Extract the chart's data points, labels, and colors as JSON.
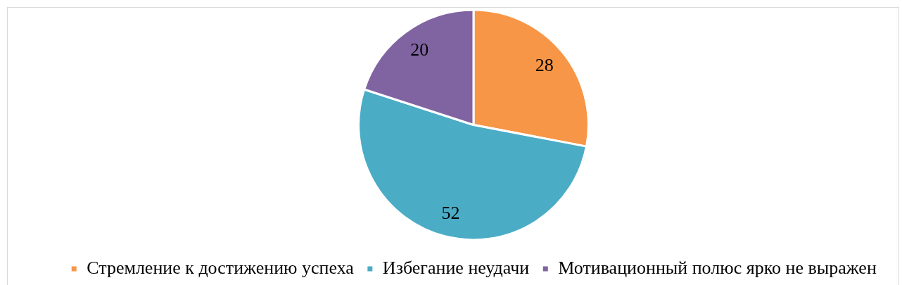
{
  "chart_data": {
    "type": "pie",
    "categories": [
      "Стремление к достижению успеха",
      "Избегание неудачи",
      "Мотивационный полюс ярко не выражен"
    ],
    "values": [
      28,
      52,
      20
    ],
    "colors": [
      "#f79646",
      "#4bacc6",
      "#8064a2"
    ],
    "data_labels": true,
    "legend": "bottom"
  }
}
